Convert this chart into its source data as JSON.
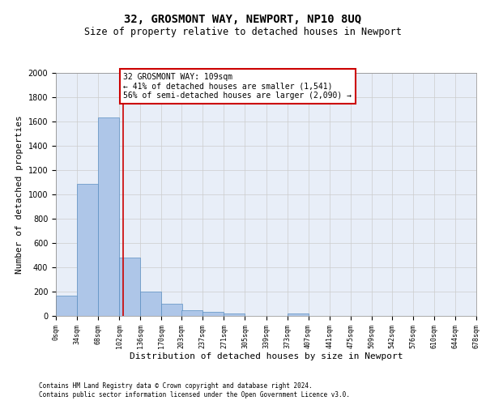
{
  "title": "32, GROSMONT WAY, NEWPORT, NP10 8UQ",
  "subtitle": "Size of property relative to detached houses in Newport",
  "xlabel": "Distribution of detached houses by size in Newport",
  "ylabel": "Number of detached properties",
  "bar_values": [
    165,
    1090,
    1635,
    480,
    200,
    100,
    45,
    35,
    20,
    0,
    0,
    20,
    0,
    0,
    0,
    0,
    0,
    0,
    0,
    0
  ],
  "bin_edges": [
    0,
    34,
    68,
    102,
    136,
    170,
    203,
    237,
    271,
    305,
    339,
    373,
    407,
    441,
    475,
    509,
    542,
    576,
    610,
    644,
    678
  ],
  "tick_labels": [
    "0sqm",
    "34sqm",
    "68sqm",
    "102sqm",
    "136sqm",
    "170sqm",
    "203sqm",
    "237sqm",
    "271sqm",
    "305sqm",
    "339sqm",
    "373sqm",
    "407sqm",
    "441sqm",
    "475sqm",
    "509sqm",
    "542sqm",
    "576sqm",
    "610sqm",
    "644sqm",
    "678sqm"
  ],
  "bar_color": "#aec6e8",
  "bar_edge_color": "#5a8fc2",
  "vline_x": 109,
  "vline_color": "#cc0000",
  "annotation_text": "32 GROSMONT WAY: 109sqm\n← 41% of detached houses are smaller (1,541)\n56% of semi-detached houses are larger (2,090) →",
  "annotation_box_color": "#cc0000",
  "ylim": [
    0,
    2000
  ],
  "yticks": [
    0,
    200,
    400,
    600,
    800,
    1000,
    1200,
    1400,
    1600,
    1800,
    2000
  ],
  "grid_color": "#cccccc",
  "bg_color": "#e8eef8",
  "footer_line1": "Contains HM Land Registry data © Crown copyright and database right 2024.",
  "footer_line2": "Contains public sector information licensed under the Open Government Licence v3.0.",
  "title_fontsize": 10,
  "subtitle_fontsize": 8.5,
  "xlabel_fontsize": 8,
  "ylabel_fontsize": 8,
  "tick_fontsize": 6,
  "annotation_fontsize": 7,
  "footer_fontsize": 5.5
}
